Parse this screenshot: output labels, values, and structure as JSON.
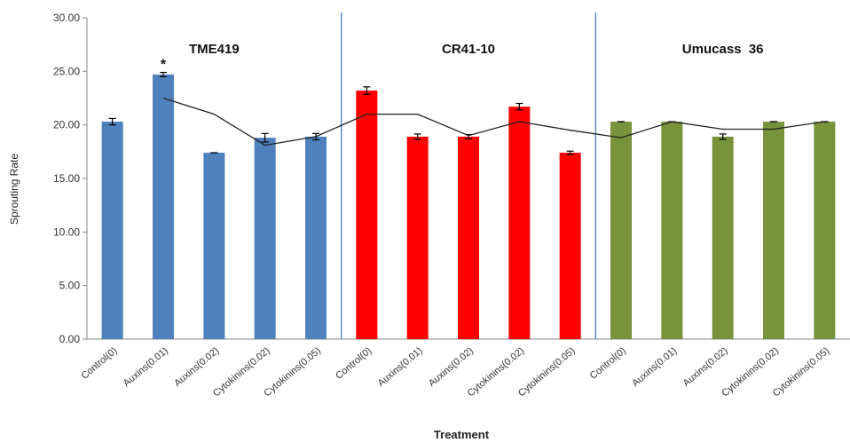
{
  "chart_data": {
    "type": "bar",
    "xlabel": "Treatment",
    "ylabel": "Sprouting Rate",
    "ylim": [
      0,
      30
    ],
    "yticks": [
      "0.00",
      "5.00",
      "10.00",
      "15.00",
      "20.00",
      "25.00",
      "30.00"
    ],
    "grid": false,
    "categories": [
      "Control(0)",
      "Auxins(0.01)",
      "Auxins(0.02)",
      "Cytokinins(0.02)",
      "Cytokinins(0.05)",
      "Control(0)",
      "Auxins(0.01)",
      "Auxins(0.02)",
      "Cytokinins(0.02)",
      "Cytokinins(0.05)",
      "Control(0)",
      "Auxins(0.01)",
      "Auxins(0.02)",
      "Cytokinins(0.02)",
      "Cytokinins(0.05)"
    ],
    "groups": [
      {
        "name": "TME419",
        "color": "#4f81bd",
        "values": [
          20.3,
          24.7,
          17.4,
          18.8,
          18.9
        ],
        "errors": [
          0.3,
          0.2,
          0.0,
          0.4,
          0.3
        ]
      },
      {
        "name": "CR41-10",
        "color": "#ff0000",
        "values": [
          23.2,
          18.9,
          18.9,
          21.7,
          17.4
        ],
        "errors": [
          0.35,
          0.25,
          0.2,
          0.3,
          0.15
        ]
      },
      {
        "name": "Umucass  36",
        "color": "#77933c",
        "values": [
          20.3,
          20.3,
          18.9,
          20.3,
          20.3
        ],
        "errors": [
          0.0,
          0.0,
          0.25,
          0.0,
          0.0
        ]
      }
    ],
    "trend_line": {
      "color": "#222222",
      "x_positions": [
        1.5,
        2.5,
        3.5,
        4.5,
        5.5,
        6.5,
        7.5,
        8.5,
        9.5,
        10.5,
        11.5,
        12.5,
        13.5,
        14.5
      ],
      "values": [
        22.5,
        21.0,
        18.1,
        18.9,
        21.0,
        21.0,
        19.0,
        20.3,
        19.5,
        18.8,
        20.3,
        19.6,
        19.6,
        20.3
      ]
    },
    "annotations": [
      {
        "text": "*",
        "category_index": 1
      }
    ],
    "separators_after_category_index": [
      4,
      9
    ],
    "separator_color": "#4a7ebb"
  }
}
